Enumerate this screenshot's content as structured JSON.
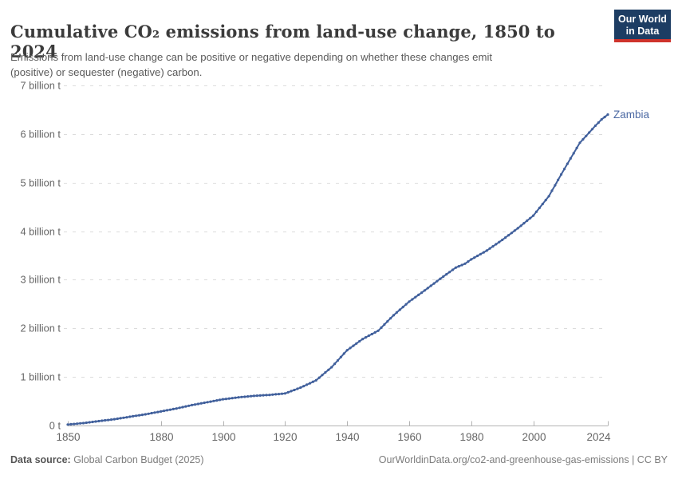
{
  "header": {
    "title": "Cumulative CO₂ emissions from land-use change, 1850 to 2024",
    "subtitle": "Emissions from land-use change can be positive or negative depending on whether these changes emit (positive) or sequester (negative) carbon.",
    "logo": {
      "line1": "Our World",
      "line2": "in Data",
      "bg_color": "#1d3d63",
      "accent_color": "#cf332c"
    }
  },
  "chart_data": {
    "type": "line",
    "title": "Cumulative CO₂ emissions from land-use change, 1850 to 2024",
    "xlabel": "",
    "ylabel": "",
    "values_unit": "billion tonnes CO₂",
    "xlim": [
      1850,
      2024
    ],
    "ylim": [
      0,
      7
    ],
    "grid": "horizontal dashed",
    "legend_position": "end-of-line label",
    "x_ticks": [
      1850,
      1880,
      1900,
      1920,
      1940,
      1960,
      1980,
      2000,
      2024
    ],
    "y_ticks": [
      {
        "v": 0,
        "label": "0 t"
      },
      {
        "v": 1,
        "label": "1 billion t"
      },
      {
        "v": 2,
        "label": "2 billion t"
      },
      {
        "v": 3,
        "label": "3 billion t"
      },
      {
        "v": 4,
        "label": "4 billion t"
      },
      {
        "v": 5,
        "label": "5 billion t"
      },
      {
        "v": 6,
        "label": "6 billion t"
      },
      {
        "v": 7,
        "label": "7 billion t"
      }
    ],
    "series": [
      {
        "name": "Zambia",
        "color": "#41609c",
        "marker": "dot-every-year",
        "anchors": [
          [
            1850,
            0.02
          ],
          [
            1855,
            0.05
          ],
          [
            1860,
            0.09
          ],
          [
            1865,
            0.13
          ],
          [
            1870,
            0.18
          ],
          [
            1875,
            0.23
          ],
          [
            1880,
            0.29
          ],
          [
            1885,
            0.35
          ],
          [
            1890,
            0.42
          ],
          [
            1895,
            0.48
          ],
          [
            1900,
            0.54
          ],
          [
            1905,
            0.58
          ],
          [
            1910,
            0.61
          ],
          [
            1915,
            0.63
          ],
          [
            1920,
            0.66
          ],
          [
            1925,
            0.78
          ],
          [
            1930,
            0.93
          ],
          [
            1935,
            1.2
          ],
          [
            1940,
            1.55
          ],
          [
            1945,
            1.78
          ],
          [
            1950,
            1.95
          ],
          [
            1955,
            2.27
          ],
          [
            1960,
            2.55
          ],
          [
            1965,
            2.78
          ],
          [
            1970,
            3.02
          ],
          [
            1975,
            3.25
          ],
          [
            1978,
            3.33
          ],
          [
            1980,
            3.42
          ],
          [
            1985,
            3.6
          ],
          [
            1990,
            3.82
          ],
          [
            1995,
            4.06
          ],
          [
            2000,
            4.32
          ],
          [
            2005,
            4.72
          ],
          [
            2010,
            5.28
          ],
          [
            2015,
            5.82
          ],
          [
            2020,
            6.17
          ],
          [
            2022,
            6.3
          ],
          [
            2024,
            6.4
          ]
        ]
      }
    ],
    "colors": {
      "line": "#41609c",
      "entity_label": "#4c69a3",
      "grid": "#dcdcdc",
      "axis": "#b3b3b3",
      "tick_label": "#666666"
    }
  },
  "footer": {
    "source_label": "Data source:",
    "source_value": " Global Carbon Budget (2025)",
    "attribution": "OurWorldinData.org/co2-and-greenhouse-gas-emissions | CC BY"
  }
}
